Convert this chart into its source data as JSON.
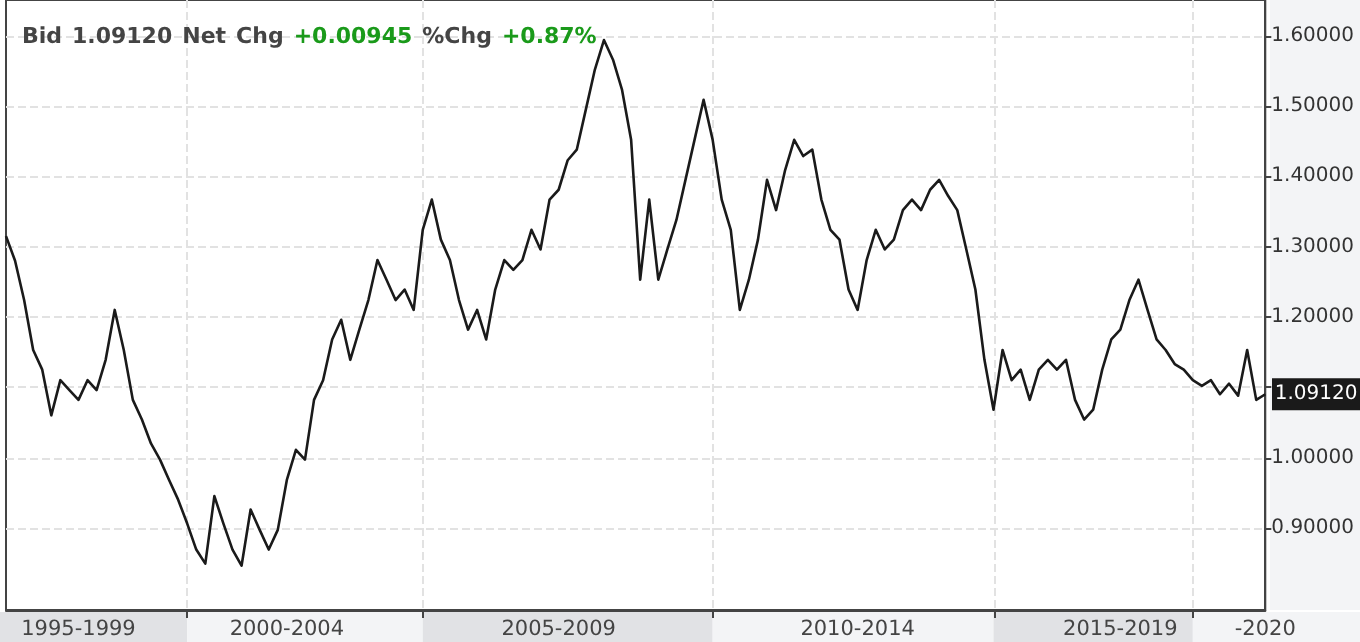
{
  "chart_data": {
    "type": "line",
    "title": "Bid 1.09120 Net Chg +0.00945 %Chg +0.87%",
    "categories": [
      null,
      null,
      null,
      null,
      null,
      null,
      null,
      null,
      "1995-1999",
      null,
      null,
      null,
      null,
      null,
      null,
      null,
      null,
      null,
      null,
      null,
      null,
      null,
      null,
      null,
      null,
      null,
      null,
      null,
      null,
      null,
      null,
      "2000-2004",
      null,
      null,
      null,
      null,
      null,
      null,
      null,
      null,
      null,
      null,
      null,
      null,
      null,
      null,
      null,
      null,
      null,
      null,
      null,
      null,
      null,
      null,
      null,
      null,
      null,
      null,
      null,
      null,
      null,
      "2005-2009",
      null,
      null,
      null,
      null,
      null,
      null,
      null,
      null,
      null,
      null,
      null,
      null,
      null,
      null,
      null,
      null,
      null,
      null,
      null,
      null,
      null,
      null,
      null,
      null,
      null,
      null,
      null,
      null,
      null,
      null,
      null,
      null,
      "2010-2014",
      null,
      null,
      null,
      null,
      null,
      null,
      null,
      null,
      null,
      null,
      null,
      null,
      null,
      null,
      null,
      null,
      null,
      null,
      null,
      null,
      null,
      null,
      null,
      null,
      null,
      null,
      null,
      null,
      "2015-2019",
      null,
      null,
      null,
      null,
      null,
      null,
      null,
      null,
      null,
      null,
      null,
      null,
      null,
      null,
      null,
      "-2020"
    ],
    "series": [
      {
        "color": "#1a1a1a",
        "values": [
          1.315,
          1.28,
          1.224,
          1.153,
          1.125,
          1.06,
          1.11,
          1.096,
          1.082,
          1.11,
          1.096,
          1.139,
          1.21,
          1.153,
          1.082,
          1.054,
          1.02,
          0.997,
          0.968,
          0.94,
          0.906,
          0.869,
          0.849,
          0.945,
          0.906,
          0.869,
          0.846,
          0.926,
          0.897,
          0.869,
          0.897,
          0.968,
          1.011,
          0.997,
          1.082,
          1.11,
          1.168,
          1.196,
          1.139,
          1.182,
          1.224,
          1.281,
          1.253,
          1.224,
          1.239,
          1.21,
          1.324,
          1.367,
          1.31,
          1.281,
          1.224,
          1.182,
          1.21,
          1.168,
          1.239,
          1.281,
          1.267,
          1.281,
          1.324,
          1.296,
          1.367,
          1.381,
          1.423,
          1.438,
          1.495,
          1.552,
          1.594,
          1.566,
          1.523,
          1.452,
          1.253,
          1.367,
          1.253,
          1.296,
          1.338,
          1.395,
          1.452,
          1.509,
          1.452,
          1.367,
          1.324,
          1.21,
          1.253,
          1.31,
          1.395,
          1.352,
          1.409,
          1.452,
          1.429,
          1.438,
          1.367,
          1.324,
          1.31,
          1.239,
          1.21,
          1.281,
          1.324,
          1.296,
          1.31,
          1.352,
          1.367,
          1.352,
          1.381,
          1.395,
          1.372,
          1.352,
          1.296,
          1.239,
          1.139,
          1.068,
          1.153,
          1.11,
          1.125,
          1.082,
          1.125,
          1.139,
          1.125,
          1.139,
          1.082,
          1.054,
          1.068,
          1.125,
          1.168,
          1.182,
          1.224,
          1.253,
          1.21,
          1.168,
          1.153,
          1.133,
          1.125,
          1.11,
          1.102,
          1.11,
          1.09,
          1.105,
          1.088,
          1.153,
          1.082,
          1.09
        ]
      }
    ],
    "ylim": [
      0.783,
      1.651
    ],
    "yticks": [
      {
        "value": 0.9,
        "label": "0.90000"
      },
      {
        "value": 1.0,
        "label": "1.00000"
      },
      {
        "value": 1.1,
        "label": null
      },
      {
        "value": 1.2,
        "label": "1.20000"
      },
      {
        "value": 1.3,
        "label": "1.30000"
      },
      {
        "value": 1.4,
        "label": "1.40000"
      },
      {
        "value": 1.5,
        "label": "1.50000"
      },
      {
        "value": 1.6,
        "label": "1.60000"
      }
    ],
    "annotations": [
      "1.09120"
    ],
    "grid": true,
    "marker": "none",
    "line_style": "solid"
  }
}
